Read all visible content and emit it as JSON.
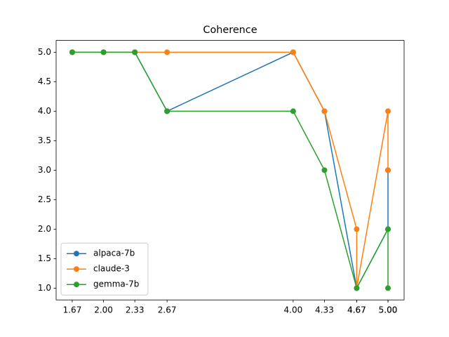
{
  "chart_data": {
    "type": "line",
    "title": "Coherence",
    "series": [
      {
        "name": "alpaca-7b",
        "color": "#1f77b4",
        "x": [
          1.67,
          2.0,
          2.33,
          2.67,
          4.0,
          4.33,
          4.67,
          5.0,
          5.0
        ],
        "values": [
          5,
          5,
          5,
          4,
          5,
          4,
          1,
          2,
          3
        ]
      },
      {
        "name": "claude-3",
        "color": "#ff7f0e",
        "x": [
          1.67,
          2.0,
          2.33,
          2.67,
          4.0,
          4.33,
          4.67,
          4.67,
          5.0,
          5.0
        ],
        "values": [
          5,
          5,
          5,
          5,
          5,
          4,
          2,
          1,
          4,
          3
        ]
      },
      {
        "name": "gemma-7b",
        "color": "#2ca02c",
        "x": [
          1.67,
          2.0,
          2.33,
          2.67,
          4.0,
          4.33,
          4.67,
          5.0,
          5.0
        ],
        "values": [
          5,
          5,
          5,
          4,
          4,
          3,
          1,
          2,
          1
        ]
      }
    ],
    "xlim": [
      1.5,
      5.17
    ],
    "ylim": [
      0.8,
      5.2
    ],
    "xticks": [
      1.67,
      {
        "value": 2,
        "label": "2.00"
      },
      2.33,
      2.67,
      {
        "value": 4,
        "label": "4.00"
      },
      4.33,
      4.67,
      4.67,
      {
        "value": 5,
        "label": "5.00"
      },
      {
        "value": 5,
        "label": "5.00"
      }
    ],
    "yticks": [
      {
        "value": 1,
        "label": "1.0"
      },
      1.5,
      {
        "value": 2,
        "label": "2.0"
      },
      2.5,
      {
        "value": 3,
        "label": "3.0"
      },
      3.5,
      {
        "value": 4,
        "label": "4.0"
      },
      4.5,
      {
        "value": 5,
        "label": "5.0"
      }
    ],
    "legend": "lower left",
    "grid": false
  }
}
